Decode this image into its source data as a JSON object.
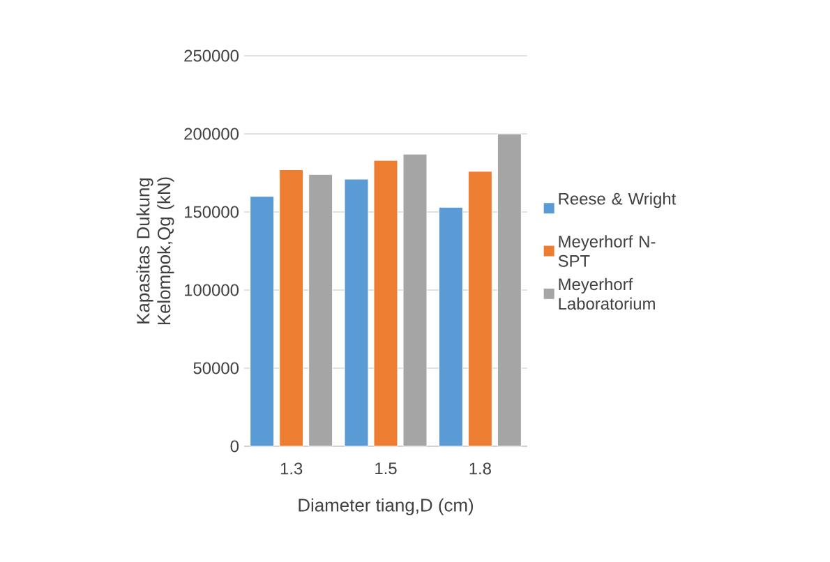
{
  "chart_data": {
    "type": "bar",
    "xlabel": "Diameter tiang,D (cm)",
    "ylabel": "Kapasitas Dukung Kelompok,Qg (kN)",
    "categories": [
      "1.3",
      "1.5",
      "1.8"
    ],
    "series": [
      {
        "name": "Reese & Wright",
        "color": "#5b9bd5",
        "values": [
          160000,
          171000,
          153000
        ]
      },
      {
        "name": "Meyerhorf N-SPT",
        "color": "#ed7d31",
        "values": [
          177000,
          183000,
          176000
        ]
      },
      {
        "name": "Meyerhorf Laboratorium",
        "color": "#a5a5a5",
        "values": [
          174000,
          187000,
          200000
        ]
      }
    ],
    "ylim": [
      0,
      250000
    ],
    "yticks": [
      0,
      50000,
      100000,
      150000,
      200000,
      250000
    ],
    "grid": "y",
    "legend": "right"
  }
}
